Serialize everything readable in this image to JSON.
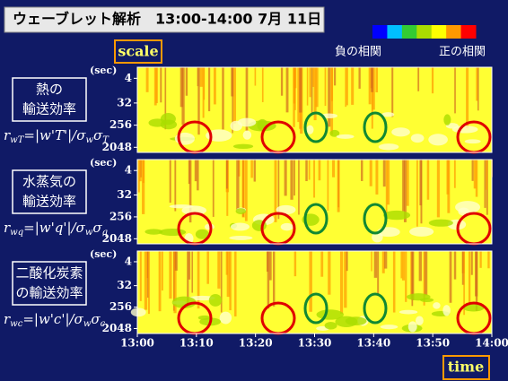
{
  "title": "ウェーブレット解析　13:00-14:00  7月 11日",
  "scale_label": "scale",
  "time_label": "time",
  "legend": {
    "negative": "負の相関",
    "positive": "正の相関",
    "colors": [
      "#0000ff",
      "#00bfff",
      "#33cc33",
      "#aadd00",
      "#ffff00",
      "#ff9900",
      "#ff0000"
    ]
  },
  "y_unit": "(sec)",
  "yticks": [
    "4",
    "32",
    "256",
    "2048"
  ],
  "xticks": [
    "13:00",
    "13:10",
    "13:20",
    "13:30",
    "13:40",
    "13:50",
    "14:00"
  ],
  "panels": [
    {
      "label": [
        "熱の",
        "輸送効率"
      ],
      "formula": [
        {
          "text": "r",
          "sub": false
        },
        {
          "text": "wT",
          "sub": true
        },
        {
          "text": "=|w'T'|/σ",
          "sub": false
        },
        {
          "text": "w",
          "sub": true
        },
        {
          "text": "σ",
          "sub": false
        },
        {
          "text": "T",
          "sub": true
        }
      ]
    },
    {
      "label": [
        "水蒸気の",
        "輸送効率"
      ],
      "formula": [
        {
          "text": "r",
          "sub": false
        },
        {
          "text": "wq",
          "sub": true
        },
        {
          "text": "=|w'q'|/σ",
          "sub": false
        },
        {
          "text": "w",
          "sub": true
        },
        {
          "text": "σ",
          "sub": false
        },
        {
          "text": "q",
          "sub": true
        }
      ]
    },
    {
      "label": [
        "二酸化炭素",
        "の輸送効率"
      ],
      "formula": [
        {
          "text": "r",
          "sub": false
        },
        {
          "text": "wc",
          "sub": true
        },
        {
          "text": "=|w'c'|/σ",
          "sub": false
        },
        {
          "text": "w",
          "sub": true
        },
        {
          "text": "σ",
          "sub": false
        },
        {
          "text": "c",
          "sub": true
        }
      ]
    }
  ]
}
